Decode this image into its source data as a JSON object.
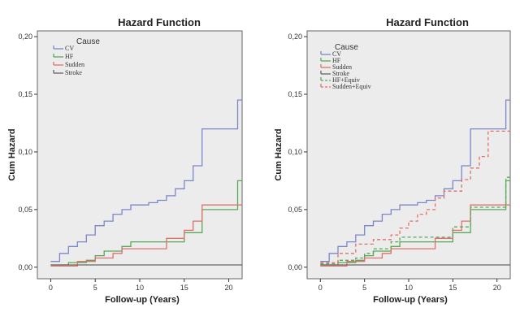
{
  "chart_data": [
    {
      "type": "line",
      "step": true,
      "title": "Hazard Function",
      "xlabel": "Follow-up (Years)",
      "ylabel": "Cum Hazard",
      "xlim": [
        -1.5,
        21.5
      ],
      "ylim": [
        -0.01,
        0.205
      ],
      "xticks": [
        0,
        5,
        10,
        15,
        20
      ],
      "xtick_labels": [
        "0",
        "5",
        "10",
        "15",
        "20"
      ],
      "yticks": [
        0,
        0.05,
        0.1,
        0.15,
        0.2
      ],
      "ytick_labels": [
        "0,00",
        "0,05",
        "0,10",
        "0,15",
        "0,20"
      ],
      "grid": false,
      "legend": {
        "title": "Cause",
        "position": "top-left"
      },
      "series": [
        {
          "name": "CV",
          "color": "#7b86c9",
          "dash": false,
          "x": [
            0,
            1,
            2,
            3,
            4,
            5,
            6,
            7,
            8,
            9,
            10,
            11,
            12,
            13,
            14,
            15,
            16,
            17,
            20,
            21,
            22
          ],
          "y": [
            0.005,
            0.012,
            0.018,
            0.022,
            0.028,
            0.036,
            0.04,
            0.046,
            0.05,
            0.054,
            0.054,
            0.056,
            0.058,
            0.062,
            0.068,
            0.075,
            0.088,
            0.12,
            0.12,
            0.145,
            0.145
          ]
        },
        {
          "name": "HF",
          "color": "#58a85a",
          "dash": false,
          "x": [
            0,
            2,
            4,
            5,
            6,
            8,
            9,
            13,
            15,
            17,
            21,
            22
          ],
          "y": [
            0.002,
            0.004,
            0.006,
            0.01,
            0.014,
            0.018,
            0.022,
            0.022,
            0.03,
            0.05,
            0.075,
            0.075
          ]
        },
        {
          "name": "Sudden",
          "color": "#e0706a",
          "dash": false,
          "x": [
            0,
            3,
            5,
            7,
            8,
            13,
            15,
            16,
            17,
            22
          ],
          "y": [
            0.001,
            0.005,
            0.008,
            0.012,
            0.016,
            0.025,
            0.032,
            0.04,
            0.054,
            0.054
          ]
        },
        {
          "name": "Stroke",
          "color": "#666666",
          "dash": false,
          "x": [
            0,
            22
          ],
          "y": [
            0.002,
            0.002
          ]
        }
      ]
    },
    {
      "type": "line",
      "step": true,
      "title": "Hazard Function",
      "xlabel": "Follow-up (Years)",
      "ylabel": "Cum Hazard",
      "xlim": [
        -1.5,
        21.5
      ],
      "ylim": [
        -0.01,
        0.205
      ],
      "xticks": [
        0,
        5,
        10,
        15,
        20
      ],
      "xtick_labels": [
        "0",
        "5",
        "10",
        "15",
        "20"
      ],
      "yticks": [
        0,
        0.05,
        0.1,
        0.15,
        0.2
      ],
      "ytick_labels": [
        "0,00",
        "0,05",
        "0,10",
        "0,15",
        "0,20"
      ],
      "grid": false,
      "legend": {
        "title": "Cause",
        "position": "top-left"
      },
      "series": [
        {
          "name": "CV",
          "color": "#7b86c9",
          "dash": false,
          "x": [
            0,
            1,
            2,
            3,
            4,
            5,
            6,
            7,
            8,
            9,
            10,
            11,
            12,
            13,
            14,
            15,
            16,
            17,
            20,
            21,
            22
          ],
          "y": [
            0.005,
            0.012,
            0.018,
            0.022,
            0.028,
            0.036,
            0.04,
            0.046,
            0.05,
            0.054,
            0.054,
            0.056,
            0.058,
            0.062,
            0.068,
            0.075,
            0.088,
            0.12,
            0.12,
            0.145,
            0.145
          ]
        },
        {
          "name": "HF",
          "color": "#58a85a",
          "dash": false,
          "x": [
            0,
            2,
            4,
            5,
            6,
            8,
            9,
            13,
            15,
            17,
            21,
            22
          ],
          "y": [
            0.002,
            0.004,
            0.006,
            0.01,
            0.014,
            0.018,
            0.022,
            0.022,
            0.03,
            0.05,
            0.075,
            0.075
          ]
        },
        {
          "name": "Sudden",
          "color": "#e0706a",
          "dash": false,
          "x": [
            0,
            3,
            5,
            7,
            8,
            13,
            15,
            16,
            17,
            22
          ],
          "y": [
            0.001,
            0.005,
            0.008,
            0.012,
            0.016,
            0.025,
            0.032,
            0.04,
            0.054,
            0.054
          ]
        },
        {
          "name": "Stroke",
          "color": "#666666",
          "dash": false,
          "x": [
            0,
            22
          ],
          "y": [
            0.002,
            0.002
          ]
        },
        {
          "name": "HF+Equiv",
          "color": "#58a85a",
          "dash": true,
          "x": [
            0,
            2,
            4,
            5,
            6,
            8,
            9,
            13,
            15,
            17,
            21,
            22
          ],
          "y": [
            0.003,
            0.006,
            0.008,
            0.012,
            0.016,
            0.022,
            0.026,
            0.026,
            0.035,
            0.052,
            0.078,
            0.078
          ]
        },
        {
          "name": "Sudden+Equiv",
          "color": "#e0706a",
          "dash": true,
          "x": [
            0,
            2,
            4,
            6,
            8,
            9,
            10,
            11,
            12,
            13,
            14,
            16,
            17,
            18,
            19,
            22
          ],
          "y": [
            0.004,
            0.012,
            0.02,
            0.024,
            0.028,
            0.034,
            0.04,
            0.046,
            0.05,
            0.06,
            0.066,
            0.076,
            0.086,
            0.096,
            0.118,
            0.118
          ]
        }
      ]
    }
  ]
}
